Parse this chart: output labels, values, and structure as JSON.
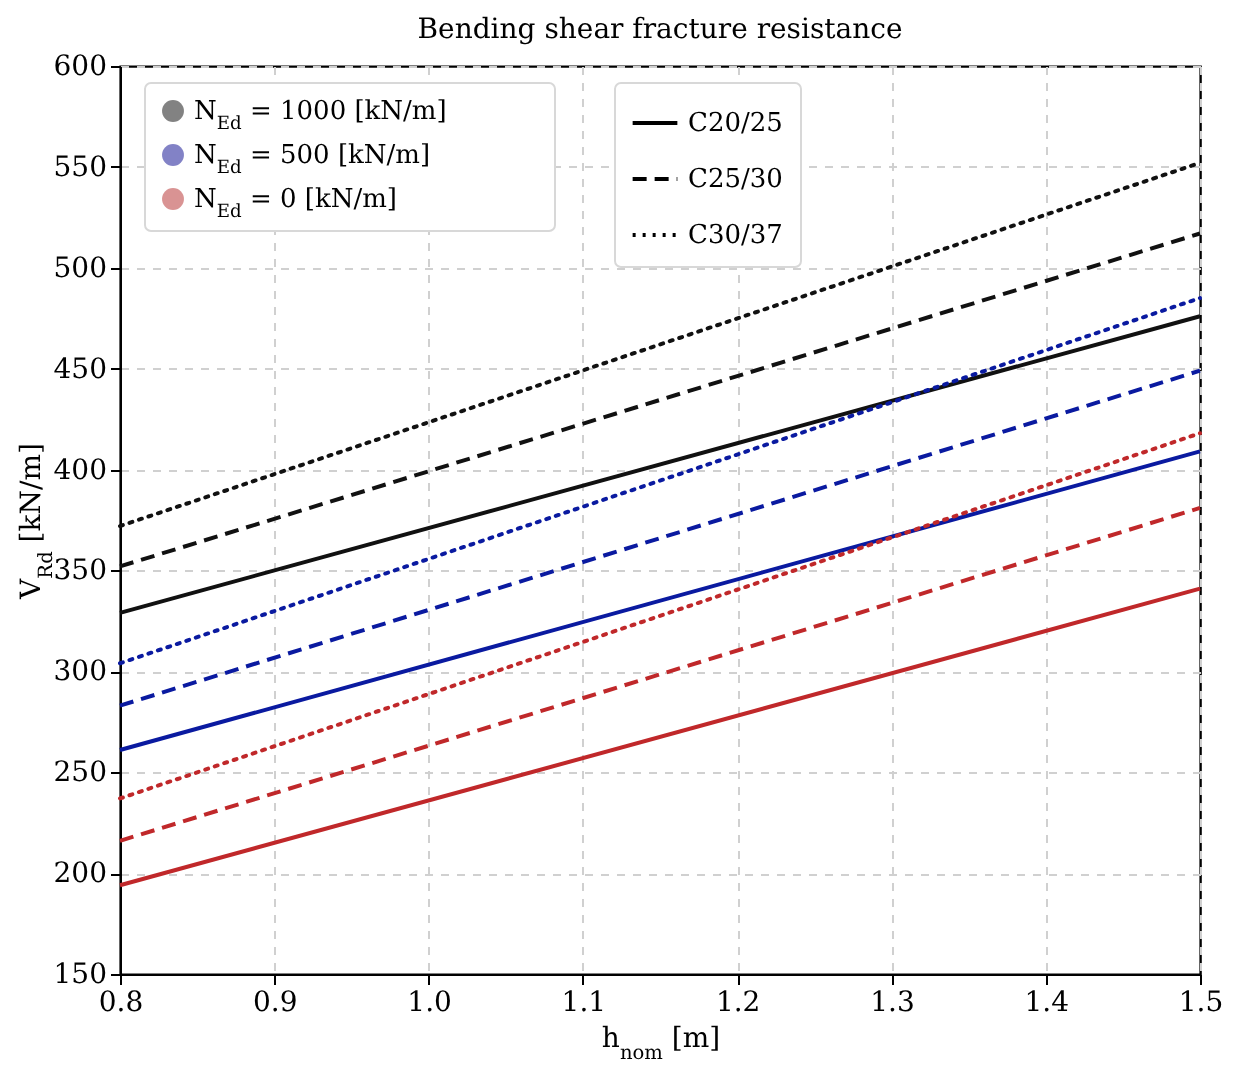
{
  "chart_data": {
    "type": "line",
    "title": "Bending shear fracture resistance",
    "xlabel": "h$_{nom}$ [m]",
    "ylabel": "V$_{Rd}$ [kN/m]",
    "x": [
      0.8,
      1.5
    ],
    "xlim": [
      0.8,
      1.5
    ],
    "xticks": [
      0.8,
      0.9,
      {
        "value": 1.0,
        "label": "1.0"
      },
      1.1,
      1.2,
      1.3,
      1.4,
      1.5
    ],
    "ylim": [
      150,
      600
    ],
    "yticks": [
      150,
      200,
      250,
      300,
      350,
      400,
      450,
      500,
      550,
      600
    ],
    "grid": true,
    "legend": "top left",
    "series": [
      {
        "color": "#111111",
        "line_style": "solid",
        "values": [
          329,
          476
        ]
      },
      {
        "color": "#111111",
        "line_style": "dashed",
        "values": [
          352,
          517
        ]
      },
      {
        "color": "#111111",
        "line_style": "dotted",
        "values": [
          372,
          552
        ]
      },
      {
        "color": "#0a1aa0",
        "line_style": "solid",
        "values": [
          261,
          409
        ]
      },
      {
        "color": "#0a1aa0",
        "line_style": "dashed",
        "values": [
          283,
          449
        ]
      },
      {
        "color": "#0a1aa0",
        "line_style": "dotted",
        "values": [
          304,
          485
        ]
      },
      {
        "color": "#c0282a",
        "line_style": "solid",
        "values": [
          194,
          341
        ]
      },
      {
        "color": "#c0282a",
        "line_style": "dashed",
        "values": [
          216,
          381
        ]
      },
      {
        "color": "#c0282a",
        "line_style": "dotted",
        "values": [
          237,
          418
        ]
      },
      {
        "type": "scatter",
        "marker": "circle",
        "name": "N$_{Ed}$ = 1000 [kN/m]",
        "color": "#000000",
        "values": [
          null,
          null
        ]
      },
      {
        "type": "scatter",
        "marker": "circle",
        "name": "N$_{Ed}$ = 500 [kN/m]",
        "color": "#00008b",
        "values": [
          null,
          null
        ]
      },
      {
        "type": "scatter",
        "marker": "circle",
        "name": "N$_{Ed}$ = 0 [kN/m]",
        "color": "#b22222",
        "values": [
          null,
          null
        ]
      },
      {
        "name": "C20/25",
        "color": "#000000",
        "line_style": "solid",
        "values": [
          null,
          null
        ]
      },
      {
        "name": "C25/30",
        "color": "#000000",
        "line_style": "dashed",
        "values": [
          null,
          null
        ]
      },
      {
        "name": "C30/37",
        "color": "#000000",
        "line_style": "dotted",
        "values": [
          null,
          null
        ]
      }
    ]
  }
}
